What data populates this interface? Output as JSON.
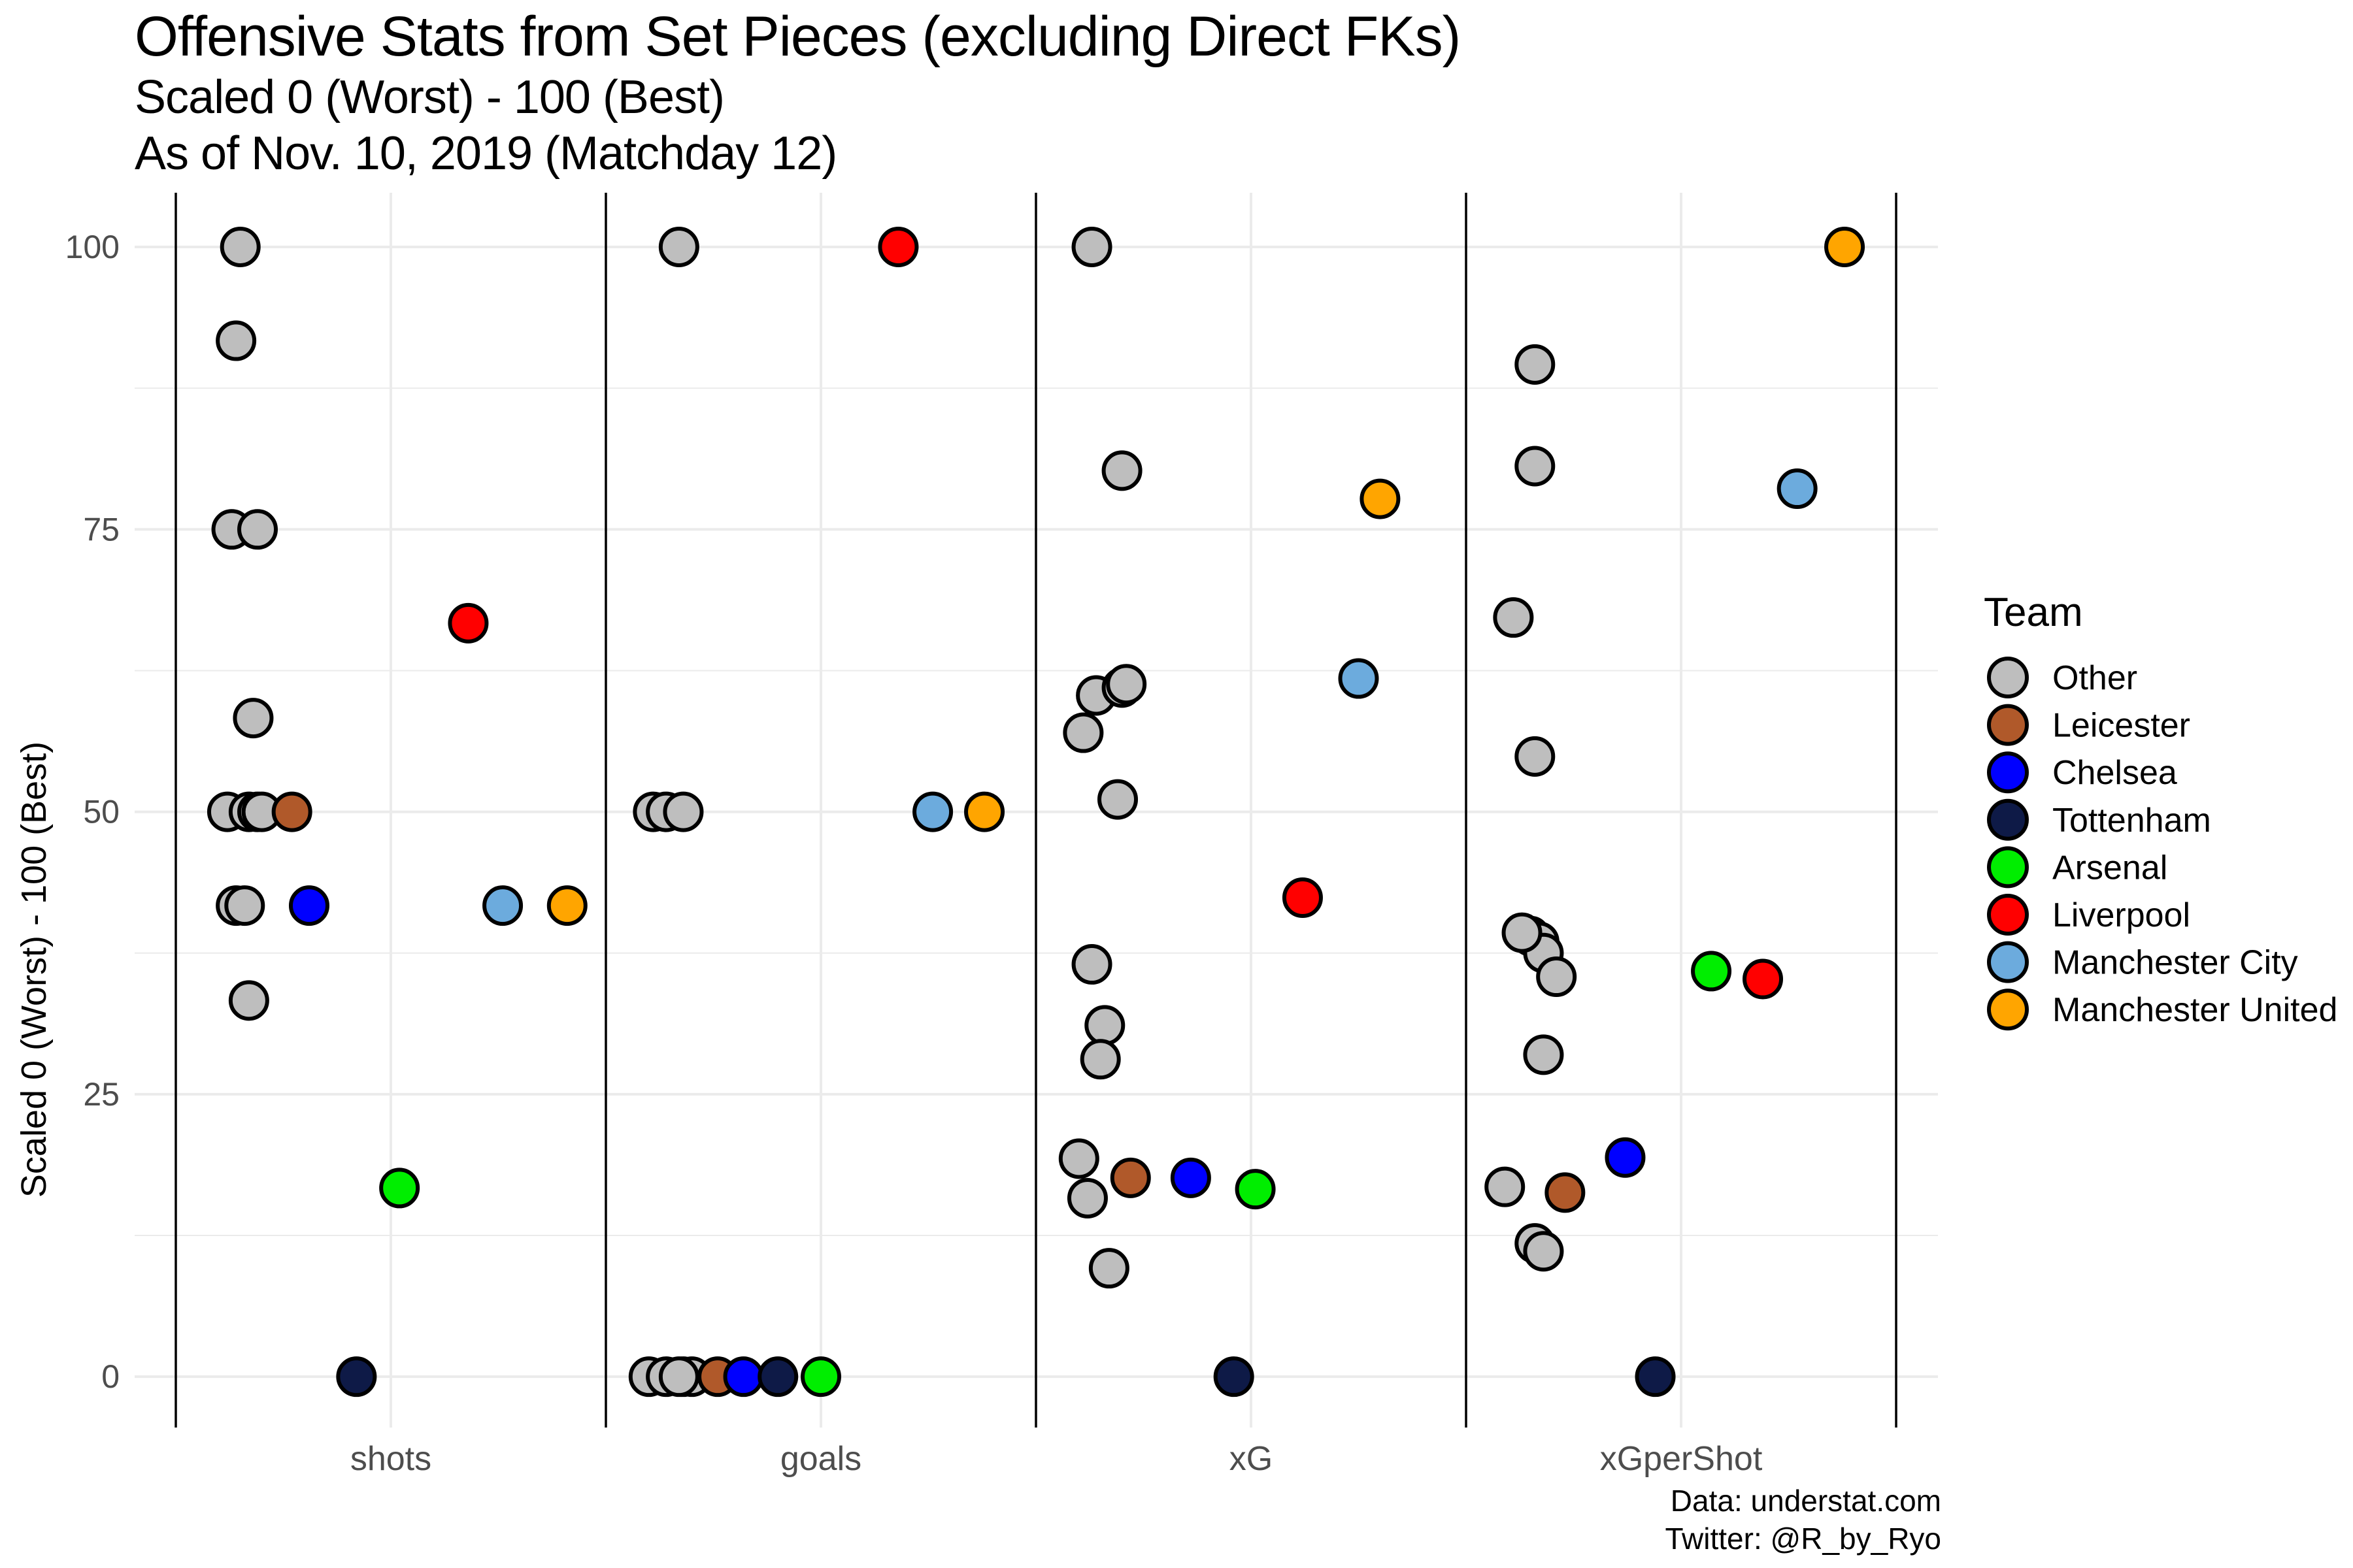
{
  "titles": {
    "title": "Offensive Stats from Set Pieces (excluding Direct FKs)",
    "subtitle1": "Scaled 0 (Worst) - 100 (Best)",
    "subtitle2": "As of Nov. 10, 2019 (Matchday 12)"
  },
  "caption": {
    "line1": "Data: understat.com",
    "line2": "Twitter: @R_by_Ryo"
  },
  "legend": {
    "title": "Team",
    "items": [
      {
        "name": "Other",
        "color": "#BEBEBE"
      },
      {
        "name": "Leicester",
        "color": "#B0592A"
      },
      {
        "name": "Chelsea",
        "color": "#0000FF"
      },
      {
        "name": "Tottenham",
        "color": "#0E1A47"
      },
      {
        "name": "Arsenal",
        "color": "#00EE00"
      },
      {
        "name": "Liverpool",
        "color": "#FF0000"
      },
      {
        "name": "Manchester City",
        "color": "#6CABDD"
      },
      {
        "name": "Manchester United",
        "color": "#FFA500"
      }
    ]
  },
  "chart_data": {
    "type": "scatter",
    "title": "Offensive Stats from Set Pieces (excluding Direct FKs)",
    "xlabel": "",
    "ylabel": "Scaled 0 (Worst) - 100 (Best)",
    "ylim": [
      -4.5,
      104.8
    ],
    "categories": [
      "shots",
      "goals",
      "xG",
      "xGperShot"
    ],
    "y_ticks": [
      0,
      25,
      50,
      75,
      100
    ],
    "grid": true,
    "legend_position": "right",
    "points": [
      {
        "stat": "shots",
        "offset": -0.35,
        "y": 100,
        "team": "Other"
      },
      {
        "stat": "shots",
        "offset": -0.36,
        "y": 91.7,
        "team": "Other"
      },
      {
        "stat": "shots",
        "offset": -0.37,
        "y": 75,
        "team": "Other"
      },
      {
        "stat": "shots",
        "offset": -0.31,
        "y": 75,
        "team": "Other"
      },
      {
        "stat": "shots",
        "offset": -0.32,
        "y": 58.3,
        "team": "Other"
      },
      {
        "stat": "shots",
        "offset": -0.38,
        "y": 50,
        "team": "Other"
      },
      {
        "stat": "shots",
        "offset": -0.33,
        "y": 50,
        "team": "Other"
      },
      {
        "stat": "shots",
        "offset": -0.31,
        "y": 50,
        "team": "Other"
      },
      {
        "stat": "shots",
        "offset": -0.3,
        "y": 50,
        "team": "Other"
      },
      {
        "stat": "shots",
        "offset": -0.23,
        "y": 50,
        "team": "Leicester"
      },
      {
        "stat": "shots",
        "offset": -0.36,
        "y": 41.7,
        "team": "Other"
      },
      {
        "stat": "shots",
        "offset": -0.34,
        "y": 41.7,
        "team": "Other"
      },
      {
        "stat": "shots",
        "offset": -0.19,
        "y": 41.7,
        "team": "Chelsea"
      },
      {
        "stat": "shots",
        "offset": 0.26,
        "y": 41.7,
        "team": "Manchester City"
      },
      {
        "stat": "shots",
        "offset": 0.41,
        "y": 41.7,
        "team": "Manchester United"
      },
      {
        "stat": "shots",
        "offset": -0.33,
        "y": 33.3,
        "team": "Other"
      },
      {
        "stat": "shots",
        "offset": 0.18,
        "y": 66.7,
        "team": "Liverpool"
      },
      {
        "stat": "shots",
        "offset": 0.02,
        "y": 16.7,
        "team": "Arsenal"
      },
      {
        "stat": "shots",
        "offset": -0.08,
        "y": 0,
        "team": "Tottenham"
      },
      {
        "stat": "goals",
        "offset": -0.33,
        "y": 100,
        "team": "Other"
      },
      {
        "stat": "goals",
        "offset": 0.18,
        "y": 100,
        "team": "Liverpool"
      },
      {
        "stat": "goals",
        "offset": -0.39,
        "y": 50,
        "team": "Other"
      },
      {
        "stat": "goals",
        "offset": -0.36,
        "y": 50,
        "team": "Other"
      },
      {
        "stat": "goals",
        "offset": -0.32,
        "y": 50,
        "team": "Other"
      },
      {
        "stat": "goals",
        "offset": 0.26,
        "y": 50,
        "team": "Manchester City"
      },
      {
        "stat": "goals",
        "offset": 0.38,
        "y": 50,
        "team": "Manchester United"
      },
      {
        "stat": "goals",
        "offset": -0.4,
        "y": 0,
        "team": "Other"
      },
      {
        "stat": "goals",
        "offset": -0.36,
        "y": 0,
        "team": "Other"
      },
      {
        "stat": "goals",
        "offset": -0.32,
        "y": 0,
        "team": "Other"
      },
      {
        "stat": "goals",
        "offset": -0.3,
        "y": 0,
        "team": "Other"
      },
      {
        "stat": "goals",
        "offset": -0.33,
        "y": 0,
        "team": "Other"
      },
      {
        "stat": "goals",
        "offset": -0.24,
        "y": 0,
        "team": "Leicester"
      },
      {
        "stat": "goals",
        "offset": -0.18,
        "y": 0,
        "team": "Chelsea"
      },
      {
        "stat": "goals",
        "offset": -0.1,
        "y": 0,
        "team": "Tottenham"
      },
      {
        "stat": "goals",
        "offset": 0.0,
        "y": 0,
        "team": "Arsenal"
      },
      {
        "stat": "xG",
        "offset": -0.37,
        "y": 100,
        "team": "Other"
      },
      {
        "stat": "xG",
        "offset": -0.3,
        "y": 80.2,
        "team": "Other"
      },
      {
        "stat": "xG",
        "offset": 0.3,
        "y": 77.7,
        "team": "Manchester United"
      },
      {
        "stat": "xG",
        "offset": 0.25,
        "y": 61.8,
        "team": "Manchester City"
      },
      {
        "stat": "xG",
        "offset": -0.36,
        "y": 60.3,
        "team": "Other"
      },
      {
        "stat": "xG",
        "offset": -0.3,
        "y": 61.0,
        "team": "Other"
      },
      {
        "stat": "xG",
        "offset": -0.29,
        "y": 61.3,
        "team": "Other"
      },
      {
        "stat": "xG",
        "offset": -0.39,
        "y": 57.0,
        "team": "Other"
      },
      {
        "stat": "xG",
        "offset": -0.31,
        "y": 51.1,
        "team": "Other"
      },
      {
        "stat": "xG",
        "offset": 0.12,
        "y": 42.4,
        "team": "Liverpool"
      },
      {
        "stat": "xG",
        "offset": -0.37,
        "y": 36.5,
        "team": "Other"
      },
      {
        "stat": "xG",
        "offset": -0.34,
        "y": 31.1,
        "team": "Other"
      },
      {
        "stat": "xG",
        "offset": -0.35,
        "y": 28.1,
        "team": "Other"
      },
      {
        "stat": "xG",
        "offset": -0.4,
        "y": 19.3,
        "team": "Other"
      },
      {
        "stat": "xG",
        "offset": -0.38,
        "y": 15.8,
        "team": "Other"
      },
      {
        "stat": "xG",
        "offset": -0.28,
        "y": 17.6,
        "team": "Leicester"
      },
      {
        "stat": "xG",
        "offset": -0.14,
        "y": 17.6,
        "team": "Chelsea"
      },
      {
        "stat": "xG",
        "offset": 0.01,
        "y": 16.6,
        "team": "Arsenal"
      },
      {
        "stat": "xG",
        "offset": -0.33,
        "y": 9.6,
        "team": "Other"
      },
      {
        "stat": "xG",
        "offset": -0.04,
        "y": 0,
        "team": "Tottenham"
      },
      {
        "stat": "xGperShot",
        "offset": 0.38,
        "y": 100,
        "team": "Manchester United"
      },
      {
        "stat": "xGperShot",
        "offset": -0.34,
        "y": 89.6,
        "team": "Other"
      },
      {
        "stat": "xGperShot",
        "offset": -0.34,
        "y": 80.6,
        "team": "Other"
      },
      {
        "stat": "xGperShot",
        "offset": 0.27,
        "y": 78.6,
        "team": "Manchester City"
      },
      {
        "stat": "xGperShot",
        "offset": -0.39,
        "y": 67.2,
        "team": "Other"
      },
      {
        "stat": "xGperShot",
        "offset": -0.34,
        "y": 54.9,
        "team": "Other"
      },
      {
        "stat": "xGperShot",
        "offset": -0.35,
        "y": 39.0,
        "team": "Other"
      },
      {
        "stat": "xGperShot",
        "offset": -0.33,
        "y": 38.5,
        "team": "Other"
      },
      {
        "stat": "xGperShot",
        "offset": -0.32,
        "y": 37.5,
        "team": "Other"
      },
      {
        "stat": "xGperShot",
        "offset": -0.29,
        "y": 35.4,
        "team": "Other"
      },
      {
        "stat": "xGperShot",
        "offset": -0.37,
        "y": 39.3,
        "team": "Other"
      },
      {
        "stat": "xGperShot",
        "offset": 0.07,
        "y": 35.9,
        "team": "Arsenal"
      },
      {
        "stat": "xGperShot",
        "offset": 0.19,
        "y": 35.2,
        "team": "Liverpool"
      },
      {
        "stat": "xGperShot",
        "offset": -0.32,
        "y": 28.5,
        "team": "Other"
      },
      {
        "stat": "xGperShot",
        "offset": -0.13,
        "y": 19.4,
        "team": "Chelsea"
      },
      {
        "stat": "xGperShot",
        "offset": -0.41,
        "y": 16.8,
        "team": "Other"
      },
      {
        "stat": "xGperShot",
        "offset": -0.27,
        "y": 16.3,
        "team": "Leicester"
      },
      {
        "stat": "xGperShot",
        "offset": -0.34,
        "y": 11.8,
        "team": "Other"
      },
      {
        "stat": "xGperShot",
        "offset": -0.32,
        "y": 11.1,
        "team": "Other"
      },
      {
        "stat": "xGperShot",
        "offset": -0.06,
        "y": 0,
        "team": "Tottenham"
      }
    ]
  }
}
